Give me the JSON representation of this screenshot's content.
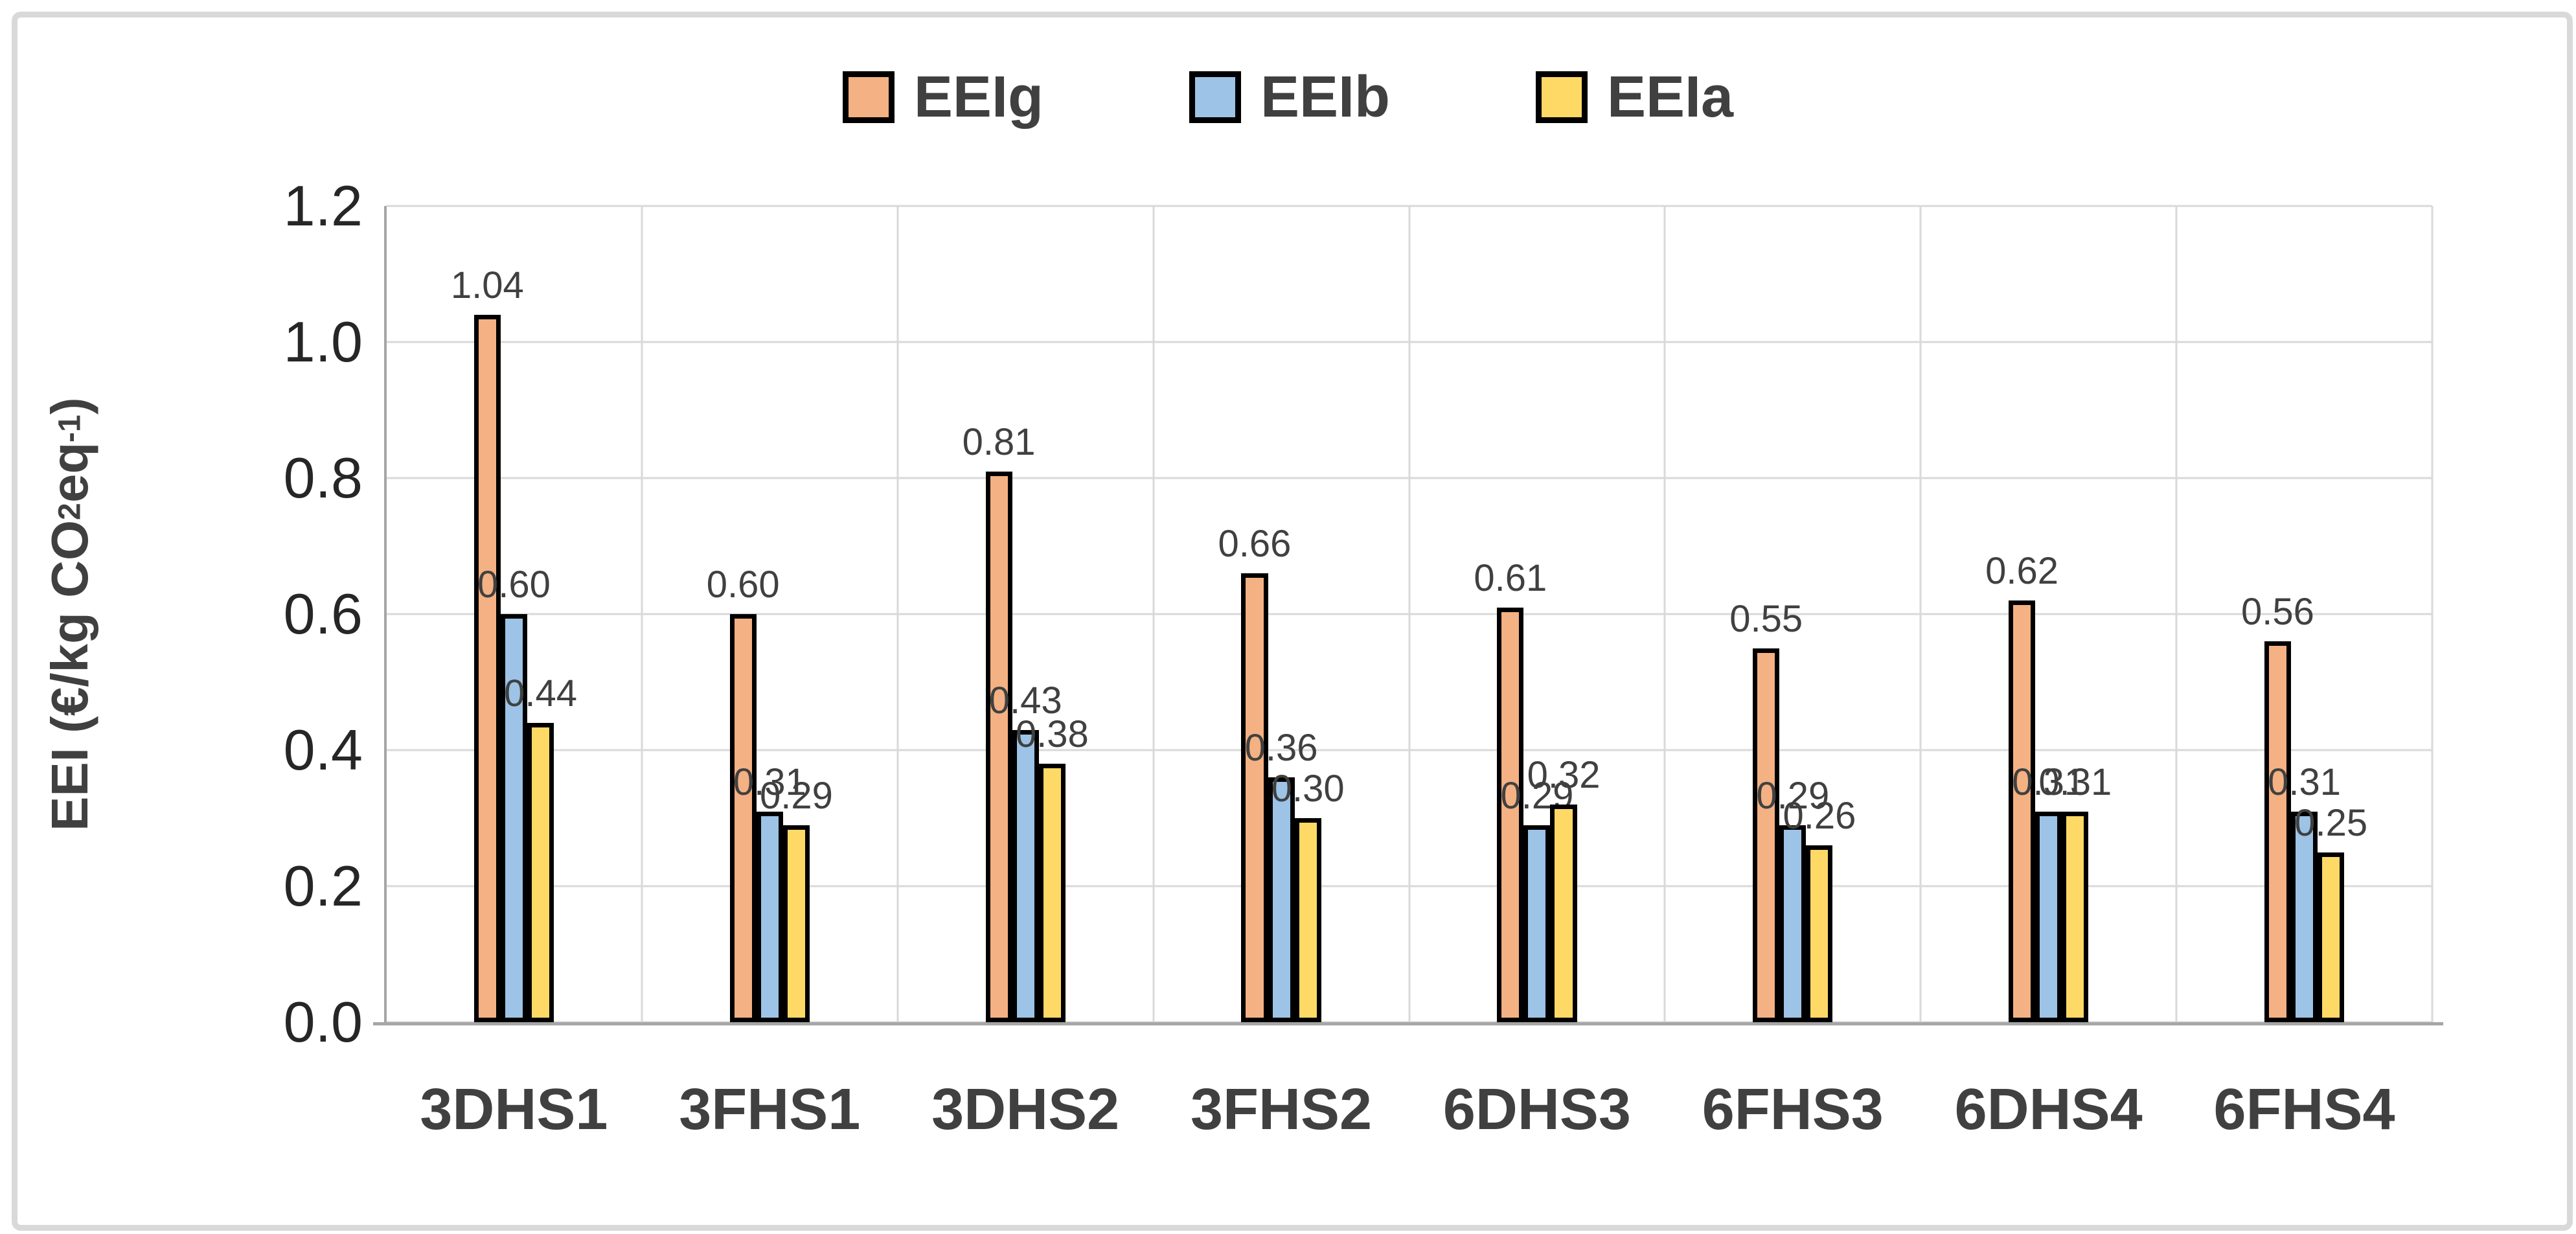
{
  "chart_data": {
    "type": "bar",
    "title": "",
    "categories": [
      "3DHS1",
      "3FHS1",
      "3DHS2",
      "3FHS2",
      "6DHS3",
      "6FHS3",
      "6DHS4",
      "6FHS4"
    ],
    "series": [
      {
        "name": "EEIg",
        "color": "#F4B183",
        "values": [
          1.04,
          0.6,
          0.81,
          0.66,
          0.61,
          0.55,
          0.62,
          0.56
        ],
        "labels": [
          "1.04",
          "0.60",
          "0.81",
          "0.66",
          "0.61",
          "0.55",
          "0.62",
          "0.56"
        ]
      },
      {
        "name": "EEIb",
        "color": "#9DC3E6",
        "values": [
          0.6,
          0.31,
          0.43,
          0.36,
          0.29,
          0.29,
          0.31,
          0.31
        ],
        "labels": [
          "0.60",
          "0.31",
          "0.43",
          "0.36",
          "0.29",
          "0.29",
          "0.31",
          "0.31"
        ]
      },
      {
        "name": "EEIa",
        "color": "#FFD966",
        "values": [
          0.44,
          0.29,
          0.38,
          0.3,
          0.32,
          0.26,
          0.31,
          0.25
        ],
        "labels": [
          "0.44",
          "0.29",
          "0.38",
          "0.30",
          "0.32",
          "0.26",
          "0.31",
          "0.25"
        ]
      }
    ],
    "ylabel_parts": {
      "pre": "EEI (€/kg CO",
      "sub": "2",
      "mid": "eq",
      "sup": "-1",
      "post": ")"
    },
    "y_ticks": [
      1.2,
      1.0,
      0.8,
      0.6,
      0.4,
      0.2,
      0.0
    ],
    "ylim": [
      0,
      1.2
    ],
    "grid": true,
    "legend_position": "top",
    "bar_border_color": "#000000",
    "gridline_color": "#D9D9D9",
    "axis_line_color": "#A6A6A6",
    "xlabel": "",
    "ylabel": "EEI (€/kg CO2eq-1)"
  }
}
